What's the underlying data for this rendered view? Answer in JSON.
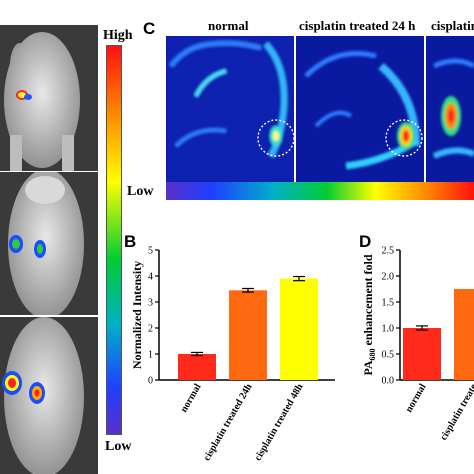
{
  "panel_a": {
    "colorbar": {
      "high_label": "High",
      "low_label": "Low"
    }
  },
  "panel_c": {
    "letter": "C",
    "titles": [
      "normal",
      "cisplatin treated 24 h",
      "cisplatin"
    ],
    "colorbar": {
      "low_label": "Low"
    }
  },
  "panel_b": {
    "letter": "B"
  },
  "panel_d": {
    "letter": "D"
  },
  "chart_data": [
    {
      "type": "bar",
      "ylabel": "Normalized Intensity",
      "categories": [
        "normal",
        "cisplatin treated 24h",
        "cisplatin treated 48h"
      ],
      "values": [
        1.0,
        3.45,
        3.9
      ],
      "errors": [
        0.06,
        0.07,
        0.08
      ],
      "ylim": [
        0,
        5
      ],
      "yticks": [
        "0",
        "1",
        "2",
        "3",
        "4",
        "5"
      ],
      "colors": [
        "#ff2a1a",
        "#ff6a10",
        "#ffff00"
      ]
    },
    {
      "type": "bar",
      "ylabel_prefix": "PA",
      "ylabel_sub": "680",
      "ylabel_suffix": " enhancement fold",
      "categories": [
        "normal",
        "cisplatin treate"
      ],
      "values": [
        1.0,
        1.75
      ],
      "errors": [
        0.04,
        0
      ],
      "ylim": [
        0,
        2.5
      ],
      "yticks": [
        "0.0",
        "0.5",
        "1.0",
        "1.5",
        "2.0",
        "2.5"
      ],
      "colors": [
        "#ff2a1a",
        "#ff6a10"
      ]
    }
  ]
}
